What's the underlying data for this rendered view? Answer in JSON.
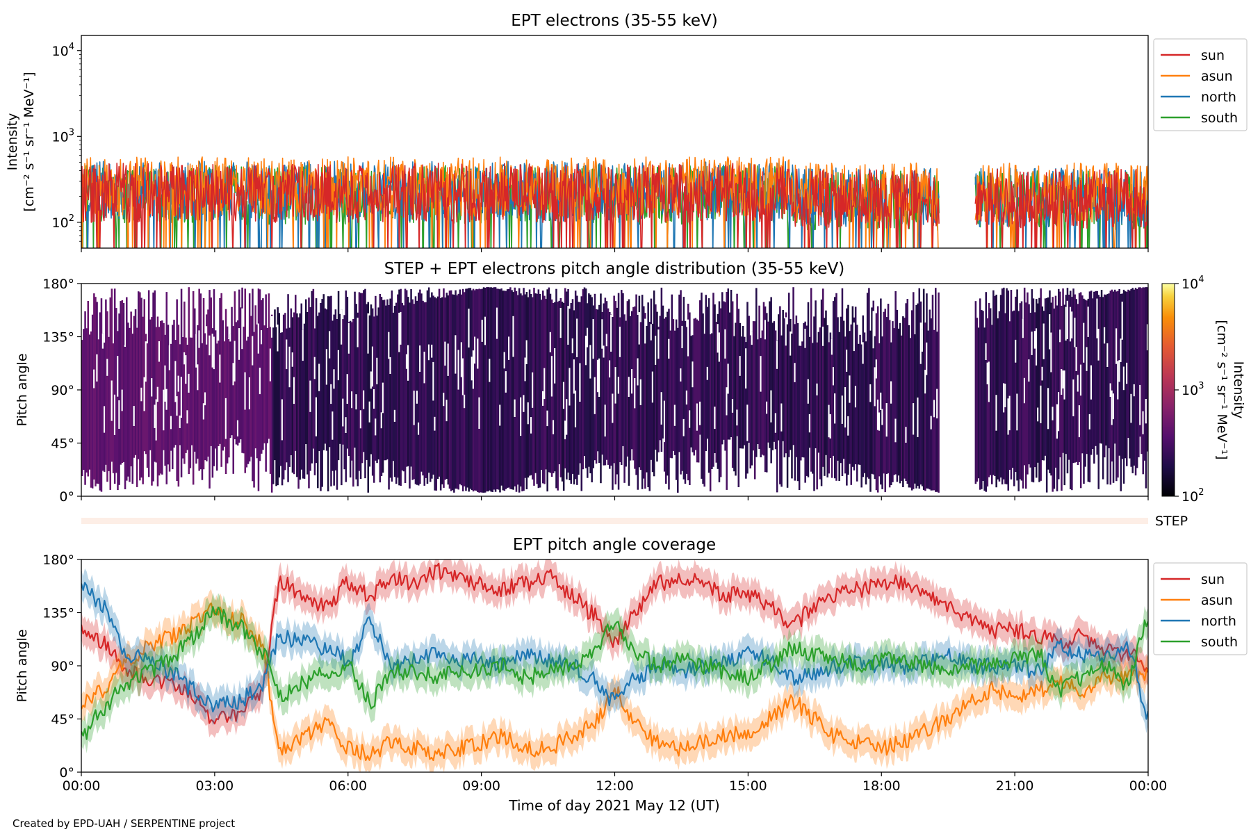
{
  "figure": {
    "credit": "Created by EPD-UAH / SERPENTINE project",
    "xlabel": "Time of day 2021 May 12 (UT)",
    "xticks": [
      "00:00",
      "03:00",
      "06:00",
      "09:00",
      "12:00",
      "15:00",
      "18:00",
      "21:00",
      "00:00"
    ],
    "step_label": "STEP"
  },
  "chart_data": [
    {
      "type": "line",
      "title": "EPT electrons (35-55 keV)",
      "ylabel_line1": "Intensity",
      "ylabel_line2": "[cm⁻² s⁻¹ sr⁻¹ MeV⁻¹]",
      "yscale": "log",
      "ylim": [
        50,
        15000
      ],
      "yticks": [
        {
          "value": 100,
          "base": "10",
          "exp": "2"
        },
        {
          "value": 1000,
          "base": "10",
          "exp": "3"
        },
        {
          "value": 10000,
          "base": "10",
          "exp": "4"
        }
      ],
      "xlim_hours": [
        0,
        24
      ],
      "data_gap_hours": [
        19.3,
        20.1
      ],
      "legend_position": "outside-right",
      "series": [
        {
          "name": "sun",
          "color": "#d62728",
          "typical": 220
        },
        {
          "name": "asun",
          "color": "#ff7f0e",
          "typical": 260
        },
        {
          "name": "north",
          "color": "#1f77b4",
          "typical": 230
        },
        {
          "name": "south",
          "color": "#2ca02c",
          "typical": 210
        }
      ]
    },
    {
      "type": "heatmap",
      "title": "STEP + EPT electrons pitch angle distribution (35-55 keV)",
      "ylabel": "Pitch angle",
      "ylim": [
        0,
        180
      ],
      "yticks": [
        "0°",
        "45°",
        "90°",
        "135°",
        "180°"
      ],
      "xlim_hours": [
        0,
        24
      ],
      "data_gap_hours": [
        19.3,
        20.1
      ],
      "colorbar": {
        "label_line1": "Intensity",
        "label_line2": "[cm⁻² s⁻¹ sr⁻¹ MeV⁻¹]",
        "scale": "log",
        "range": [
          100,
          10000
        ],
        "ticks": [
          {
            "base": "10",
            "exp": "2"
          },
          {
            "base": "10",
            "exp": "3"
          },
          {
            "base": "10",
            "exp": "4"
          }
        ],
        "colormap": "inferno"
      }
    },
    {
      "type": "line",
      "title": "EPT pitch angle coverage",
      "ylabel": "Pitch angle",
      "ylim": [
        0,
        180
      ],
      "yticks": [
        "0°",
        "45°",
        "90°",
        "135°",
        "180°"
      ],
      "xlim_hours": [
        0,
        24
      ],
      "legend_position": "outside-right",
      "keyframes_hours": [
        0,
        0.5,
        1,
        1.5,
        2,
        2.5,
        3,
        3.5,
        4,
        4.5,
        5,
        5.5,
        6,
        6.5,
        7,
        7.5,
        8,
        8.5,
        9,
        9.5,
        10,
        10.5,
        11,
        11.5,
        12,
        12.5,
        13,
        13.5,
        14,
        14.5,
        15,
        15.5,
        16,
        16.5,
        17,
        17.5,
        18,
        18.5,
        19,
        19.5,
        20,
        20.5,
        21,
        21.5,
        22,
        22.5,
        23,
        23.5,
        24
      ],
      "series": [
        {
          "name": "sun",
          "color": "#d62728",
          "values": [
            120,
            110,
            85,
            80,
            75,
            65,
            45,
            50,
            65,
            160,
            150,
            140,
            160,
            150,
            165,
            160,
            170,
            165,
            160,
            155,
            160,
            165,
            150,
            135,
            110,
            140,
            160,
            165,
            160,
            150,
            150,
            140,
            125,
            140,
            150,
            155,
            160,
            160,
            150,
            140,
            130,
            120,
            120,
            115,
            110,
            115,
            105,
            100,
            90
          ]
        },
        {
          "name": "asun",
          "color": "#ff7f0e",
          "values": [
            60,
            70,
            95,
            105,
            115,
            125,
            140,
            130,
            110,
            20,
            30,
            40,
            20,
            15,
            25,
            20,
            15,
            20,
            25,
            30,
            20,
            20,
            30,
            40,
            70,
            40,
            25,
            20,
            25,
            30,
            35,
            45,
            60,
            45,
            30,
            25,
            20,
            25,
            35,
            45,
            60,
            70,
            65,
            70,
            75,
            70,
            80,
            80,
            85
          ]
        },
        {
          "name": "north",
          "color": "#1f77b4",
          "values": [
            160,
            140,
            100,
            95,
            85,
            70,
            55,
            60,
            70,
            115,
            110,
            105,
            95,
            125,
            90,
            95,
            100,
            95,
            95,
            90,
            100,
            95,
            90,
            80,
            60,
            80,
            90,
            85,
            90,
            95,
            100,
            95,
            80,
            85,
            90,
            95,
            90,
            90,
            95,
            100,
            90,
            90,
            90,
            85,
            105,
            100,
            95,
            110,
            50
          ]
        },
        {
          "name": "south",
          "color": "#2ca02c",
          "values": [
            30,
            55,
            75,
            85,
            95,
            115,
            135,
            125,
            105,
            65,
            75,
            85,
            90,
            60,
            85,
            85,
            80,
            85,
            85,
            90,
            80,
            85,
            90,
            100,
            125,
            100,
            90,
            95,
            90,
            85,
            80,
            90,
            105,
            100,
            95,
            90,
            95,
            95,
            90,
            85,
            90,
            90,
            95,
            100,
            70,
            80,
            90,
            75,
            130
          ]
        }
      ]
    }
  ]
}
